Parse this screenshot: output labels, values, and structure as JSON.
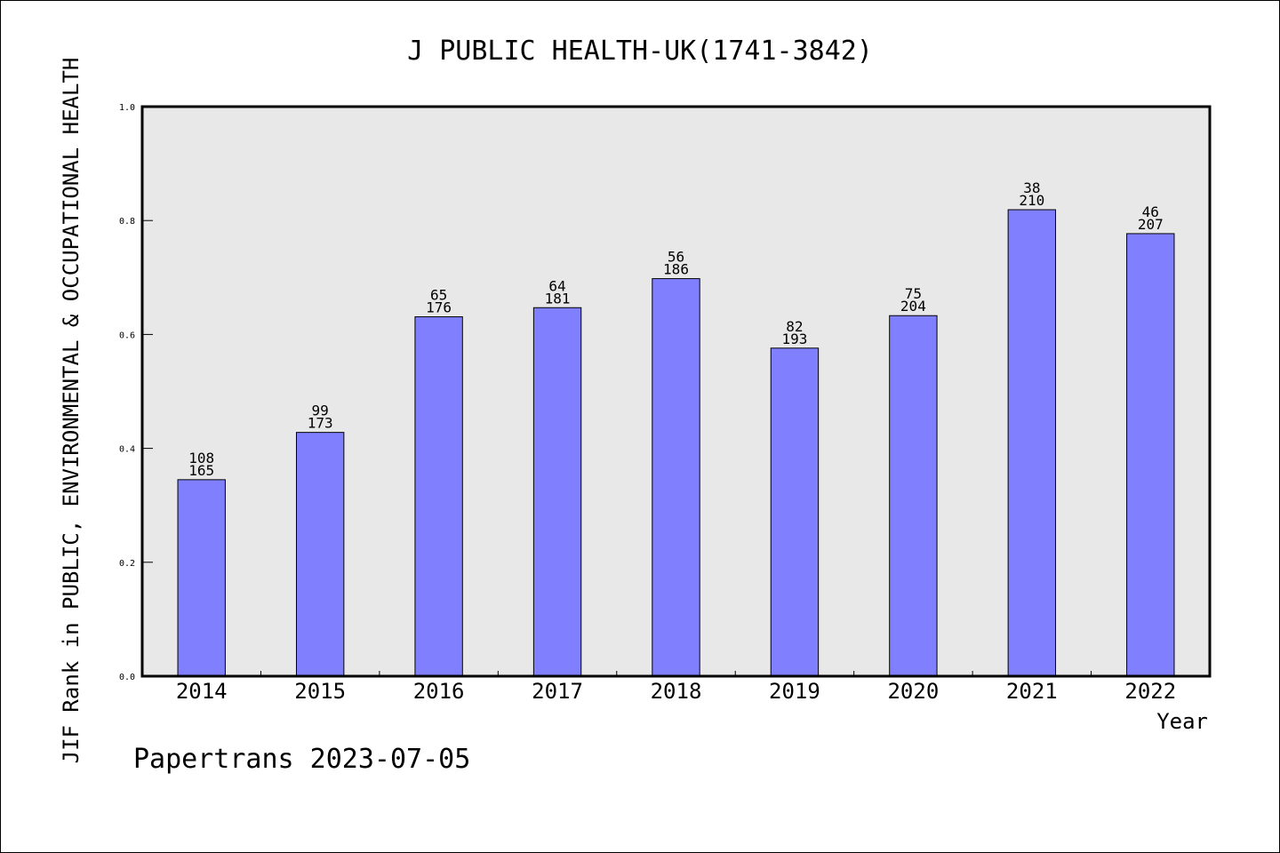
{
  "chart_data": {
    "type": "bar",
    "title": "J PUBLIC HEALTH-UK(1741-3842)",
    "ylabel": "JIF Rank in PUBLIC, ENVIRONMENTAL & OCCUPATIONAL HEALTH",
    "xlabel": "Year",
    "credit": "Papertrans 2023-07-05",
    "categories": [
      "2014",
      "2015",
      "2016",
      "2017",
      "2018",
      "2019",
      "2020",
      "2021",
      "2022"
    ],
    "values": [
      0.345,
      0.428,
      0.631,
      0.647,
      0.698,
      0.576,
      0.633,
      0.819,
      0.777
    ],
    "rank": [
      "108",
      "99",
      "65",
      "64",
      "56",
      "82",
      "75",
      "38",
      "46"
    ],
    "total": [
      "165",
      "173",
      "176",
      "181",
      "186",
      "193",
      "204",
      "210",
      "207"
    ],
    "ylim": [
      0,
      1.0
    ],
    "yticks": [
      "0.0",
      "0.2",
      "0.4",
      "0.6",
      "0.8",
      "1.0"
    ],
    "grid": false,
    "colors": {
      "bar": "#8080ff",
      "plot_background": "#e8e8e8",
      "axis": "#000000"
    }
  }
}
